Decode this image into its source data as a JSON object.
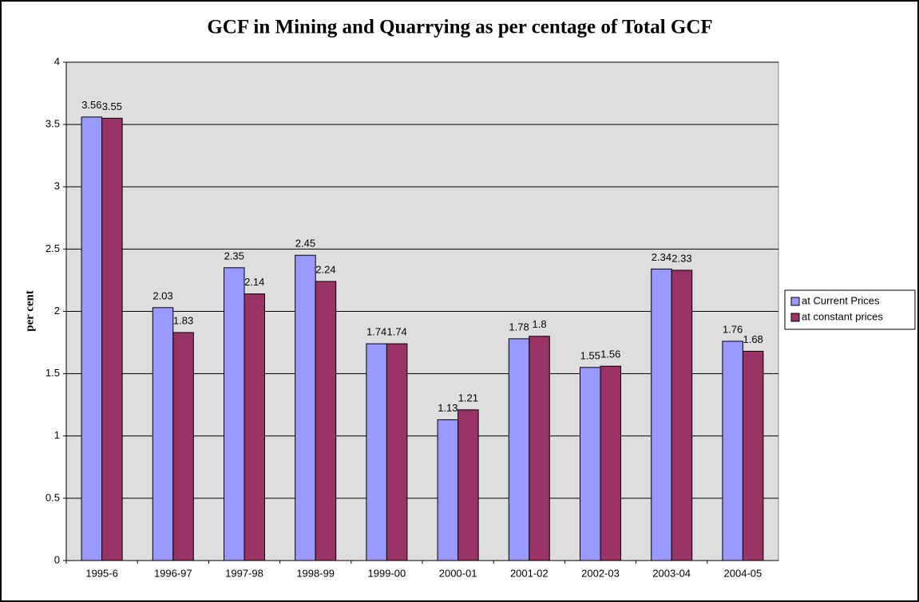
{
  "chart_data": {
    "type": "bar",
    "title": "GCF in Mining and Quarrying as per centage of Total GCF",
    "y_label": "per cent",
    "categories": [
      "1995-6",
      "1996-97",
      "1997-98",
      "1998-99",
      "1999-00",
      "2000-01",
      "2001-02",
      "2002-03",
      "2003-04",
      "2004-05"
    ],
    "series": [
      {
        "name": "at Current Prices",
        "color": "#9999ff",
        "values": [
          3.56,
          2.03,
          2.35,
          2.45,
          1.74,
          1.13,
          1.78,
          1.55,
          2.34,
          1.76
        ]
      },
      {
        "name": "at constant prices",
        "color": "#993366",
        "values": [
          3.55,
          1.83,
          2.14,
          2.24,
          1.74,
          1.21,
          1.8,
          1.56,
          2.33,
          1.68
        ]
      }
    ],
    "ylim": [
      0,
      4
    ],
    "yticks": [
      0,
      0.5,
      1,
      1.5,
      2,
      2.5,
      3,
      3.5,
      4
    ],
    "grid": true,
    "legend": "right"
  }
}
